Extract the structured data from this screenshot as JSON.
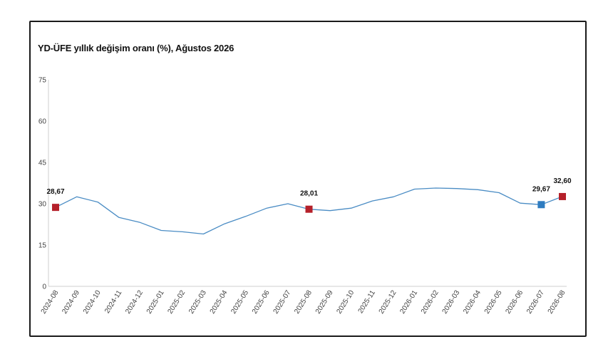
{
  "chart_data": {
    "type": "line",
    "title": "YD-ÜFE yıllık değişim oranı (%), Ağustos 2026",
    "xlabel": "",
    "ylabel": "",
    "ylim": [
      0,
      75
    ],
    "yticks": [
      0,
      15,
      30,
      45,
      60,
      75
    ],
    "grid": false,
    "categories": [
      "2024-08",
      "2024-09",
      "2024-10",
      "2024-11",
      "2024-12",
      "2025-01",
      "2025-02",
      "2025-03",
      "2025-04",
      "2025-05",
      "2025-06",
      "2025-07",
      "2025-08",
      "2025-09",
      "2025-10",
      "2025-11",
      "2025-12",
      "2026-01",
      "2026-02",
      "2026-03",
      "2026-04",
      "2026-05",
      "2026-06",
      "2026-07",
      "2026-08"
    ],
    "series": [
      {
        "values": [
          28.67,
          32.5,
          30.6,
          25.0,
          23.2,
          20.3,
          19.8,
          19.0,
          22.7,
          25.4,
          28.4,
          30.0,
          28.01,
          27.5,
          28.4,
          31.0,
          32.5,
          35.3,
          35.7,
          35.5,
          35.1,
          34.0,
          30.2,
          29.67,
          32.6
        ],
        "color": "#4a8cc4"
      }
    ],
    "markers": [
      {
        "index": 0,
        "label": "28,67",
        "color": "#b5202a"
      },
      {
        "index": 12,
        "label": "28,01",
        "color": "#b5202a"
      },
      {
        "index": 23,
        "label": "29,67",
        "color": "#2e7cc0"
      },
      {
        "index": 24,
        "label": "32,60",
        "color": "#b5202a"
      }
    ]
  }
}
